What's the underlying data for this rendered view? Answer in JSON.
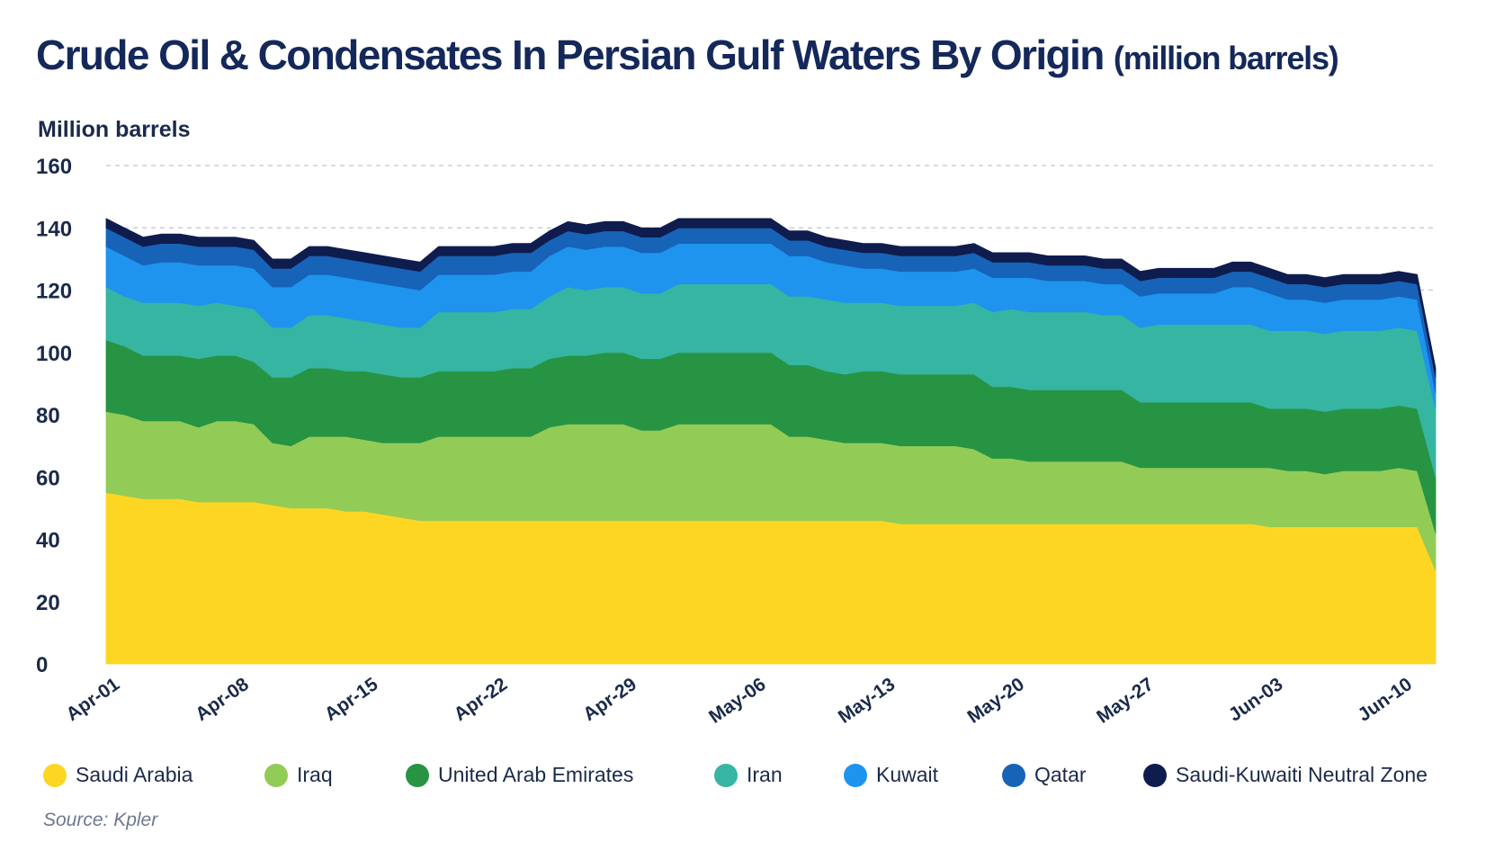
{
  "title": "Crude Oil & Condensates In Persian Gulf Waters By Origin",
  "title_unit": "(million barrels)",
  "source": "Source: Kpler",
  "colors": {
    "Saudi Arabia": "#fdd623",
    "Iraq": "#93cb57",
    "United Arab Emirates": "#269443",
    "Iran": "#36b5a2",
    "Kuwait": "#1e94ee",
    "Qatar": "#1763b8",
    "Saudi-Kuwaiti Neutral Zone": "#0f1c4e"
  },
  "chart_data": {
    "type": "area",
    "stacked": true,
    "title": "Crude Oil & Condensates In Persian Gulf Waters By Origin (million barrels)",
    "ylabel": "Million barrels",
    "ylim": [
      0,
      160
    ],
    "yticks": [
      0,
      20,
      40,
      60,
      80,
      100,
      120,
      140,
      160
    ],
    "grid": "horizontal dashed",
    "legend_position": "bottom",
    "x_tick_labels": [
      "Apr-01",
      "Apr-08",
      "Apr-15",
      "Apr-22",
      "Apr-29",
      "May-06",
      "May-13",
      "May-20",
      "May-27",
      "Jun-03",
      "Jun-10"
    ],
    "x": [
      "Apr-01",
      "Apr-02",
      "Apr-03",
      "Apr-04",
      "Apr-05",
      "Apr-06",
      "Apr-07",
      "Apr-08",
      "Apr-09",
      "Apr-10",
      "Apr-11",
      "Apr-12",
      "Apr-13",
      "Apr-14",
      "Apr-15",
      "Apr-16",
      "Apr-17",
      "Apr-18",
      "Apr-19",
      "Apr-20",
      "Apr-21",
      "Apr-22",
      "Apr-23",
      "Apr-24",
      "Apr-25",
      "Apr-26",
      "Apr-27",
      "Apr-28",
      "Apr-29",
      "Apr-30",
      "May-01",
      "May-02",
      "May-03",
      "May-04",
      "May-05",
      "May-06",
      "May-07",
      "May-08",
      "May-09",
      "May-10",
      "May-11",
      "May-12",
      "May-13",
      "May-14",
      "May-15",
      "May-16",
      "May-17",
      "May-18",
      "May-19",
      "May-20",
      "May-21",
      "May-22",
      "May-23",
      "May-24",
      "May-25",
      "May-26",
      "May-27",
      "May-28",
      "May-29",
      "May-30",
      "May-31",
      "Jun-01",
      "Jun-02",
      "Jun-03",
      "Jun-04",
      "Jun-05",
      "Jun-06",
      "Jun-07",
      "Jun-08",
      "Jun-09",
      "Jun-10",
      "Jun-11",
      "Jun-12"
    ],
    "series": [
      {
        "name": "Saudi Arabia",
        "values": [
          55,
          54,
          53,
          53,
          53,
          52,
          52,
          52,
          52,
          51,
          50,
          50,
          50,
          49,
          49,
          48,
          47,
          46,
          46,
          46,
          46,
          46,
          46,
          46,
          46,
          46,
          46,
          46,
          46,
          46,
          46,
          46,
          46,
          46,
          46,
          46,
          46,
          46,
          46,
          46,
          46,
          46,
          46,
          45,
          45,
          45,
          45,
          45,
          45,
          45,
          45,
          45,
          45,
          45,
          45,
          45,
          45,
          45,
          45,
          45,
          45,
          45,
          45,
          44,
          44,
          44,
          44,
          44,
          44,
          44,
          44,
          44,
          30
        ]
      },
      {
        "name": "Iraq",
        "values": [
          26,
          26,
          25,
          25,
          25,
          24,
          26,
          26,
          25,
          20,
          20,
          23,
          23,
          24,
          23,
          23,
          24,
          25,
          27,
          27,
          27,
          27,
          27,
          27,
          30,
          31,
          31,
          31,
          31,
          29,
          29,
          31,
          31,
          31,
          31,
          31,
          31,
          27,
          27,
          26,
          25,
          25,
          25,
          25,
          25,
          25,
          25,
          24,
          21,
          21,
          20,
          20,
          20,
          20,
          20,
          20,
          18,
          18,
          18,
          18,
          18,
          18,
          18,
          19,
          18,
          18,
          17,
          18,
          18,
          18,
          19,
          18,
          12
        ]
      },
      {
        "name": "United Arab Emirates",
        "values": [
          23,
          22,
          21,
          21,
          21,
          22,
          21,
          21,
          20,
          21,
          22,
          22,
          22,
          21,
          22,
          22,
          21,
          21,
          21,
          21,
          21,
          21,
          22,
          22,
          22,
          22,
          22,
          23,
          23,
          23,
          23,
          23,
          23,
          23,
          23,
          23,
          23,
          23,
          23,
          22,
          22,
          23,
          23,
          23,
          23,
          23,
          23,
          24,
          23,
          23,
          23,
          23,
          23,
          23,
          23,
          23,
          21,
          21,
          21,
          21,
          21,
          21,
          21,
          19,
          20,
          20,
          20,
          20,
          20,
          20,
          20,
          20,
          18
        ]
      },
      {
        "name": "Iran",
        "values": [
          17,
          16,
          17,
          17,
          17,
          17,
          17,
          16,
          17,
          16,
          16,
          17,
          17,
          17,
          16,
          16,
          16,
          16,
          19,
          19,
          19,
          19,
          19,
          19,
          20,
          22,
          21,
          21,
          21,
          21,
          21,
          22,
          22,
          22,
          22,
          22,
          22,
          22,
          22,
          23,
          23,
          22,
          22,
          22,
          22,
          22,
          22,
          23,
          24,
          25,
          25,
          25,
          25,
          25,
          24,
          24,
          24,
          25,
          25,
          25,
          25,
          25,
          25,
          25,
          25,
          25,
          25,
          25,
          25,
          25,
          25,
          25,
          22
        ]
      },
      {
        "name": "Kuwait",
        "values": [
          13,
          13,
          12,
          13,
          13,
          13,
          12,
          13,
          13,
          13,
          13,
          13,
          13,
          13,
          13,
          13,
          13,
          12,
          12,
          12,
          12,
          12,
          12,
          12,
          13,
          13,
          13,
          13,
          13,
          13,
          13,
          13,
          13,
          13,
          13,
          13,
          13,
          13,
          13,
          12,
          12,
          11,
          11,
          11,
          11,
          11,
          11,
          11,
          11,
          10,
          11,
          10,
          10,
          10,
          10,
          10,
          10,
          10,
          10,
          10,
          10,
          12,
          12,
          12,
          10,
          10,
          10,
          10,
          10,
          10,
          10,
          10,
          5
        ]
      },
      {
        "name": "Qatar",
        "values": [
          6,
          6,
          6,
          6,
          6,
          6,
          6,
          6,
          6,
          6,
          6,
          6,
          6,
          6,
          6,
          6,
          6,
          6,
          6,
          6,
          6,
          6,
          6,
          6,
          5,
          5,
          5,
          5,
          5,
          5,
          5,
          5,
          5,
          5,
          5,
          5,
          5,
          5,
          5,
          5,
          5,
          5,
          5,
          5,
          5,
          5,
          5,
          5,
          5,
          5,
          5,
          5,
          5,
          5,
          5,
          5,
          5,
          5,
          5,
          5,
          5,
          5,
          5,
          5,
          5,
          5,
          5,
          5,
          5,
          5,
          5,
          5,
          5
        ]
      },
      {
        "name": "Saudi-Kuwaiti Neutral Zone",
        "values": [
          3,
          3,
          3,
          3,
          3,
          3,
          3,
          3,
          3,
          3,
          3,
          3,
          3,
          3,
          3,
          3,
          3,
          3,
          3,
          3,
          3,
          3,
          3,
          3,
          3,
          3,
          3,
          3,
          3,
          3,
          3,
          3,
          3,
          3,
          3,
          3,
          3,
          3,
          3,
          3,
          3,
          3,
          3,
          3,
          3,
          3,
          3,
          3,
          3,
          3,
          3,
          3,
          3,
          3,
          3,
          3,
          3,
          3,
          3,
          3,
          3,
          3,
          3,
          3,
          3,
          3,
          3,
          3,
          3,
          3,
          3,
          3,
          3
        ]
      }
    ]
  }
}
